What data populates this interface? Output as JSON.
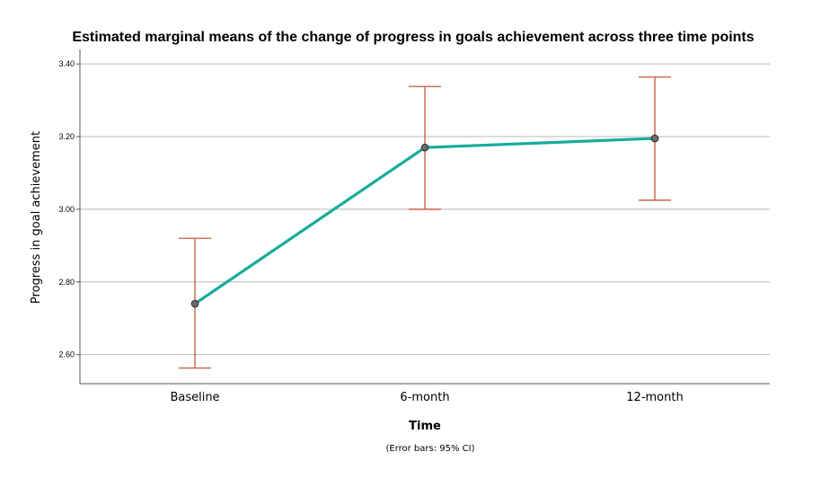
{
  "chart_data": {
    "type": "line",
    "title": "Estimated marginal means of the change of progress in goals achievement across three time points",
    "xlabel": "Time",
    "ylabel": "Progress in goal achievement",
    "note": "(Error bars: 95% CI)",
    "categories": [
      "Baseline",
      "6-month",
      "12-month"
    ],
    "values": [
      2.74,
      3.17,
      3.195
    ],
    "ci_lower": [
      2.563,
      3.0,
      3.025
    ],
    "ci_upper": [
      2.92,
      3.338,
      3.364
    ],
    "ylim": [
      2.52,
      3.44
    ],
    "yticks": [
      2.6,
      2.8,
      3.0,
      3.2,
      3.4
    ],
    "ytick_labels": [
      "2.60",
      "2.80",
      "3.00",
      "3.20",
      "3.40"
    ],
    "grid": true,
    "colors": {
      "line": "#17ab9a",
      "errorbar": "#c8573a",
      "marker_fill": "#6b6b6b",
      "marker_stroke": "#2a2a2a",
      "grid": "#b8b8b8",
      "axis": "#555555"
    }
  }
}
